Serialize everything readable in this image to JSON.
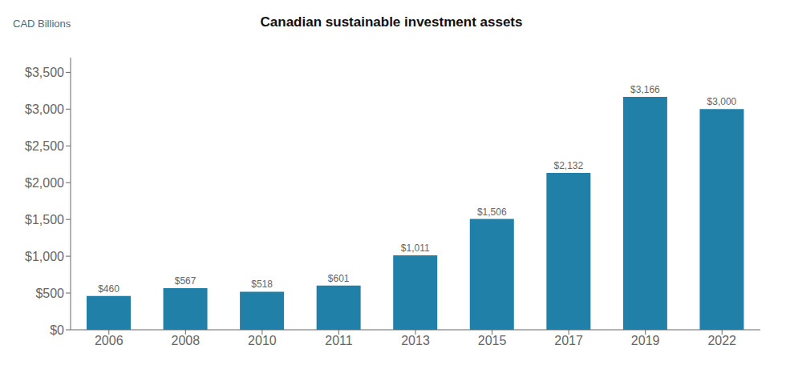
{
  "chart_data": {
    "type": "bar",
    "title": "Canadian sustainable investment assets",
    "ylabel": "CAD Billions",
    "categories": [
      "2006",
      "2008",
      "2010",
      "2011",
      "2013",
      "2015",
      "2017",
      "2019",
      "2022"
    ],
    "values": [
      460,
      567,
      518,
      601,
      1011,
      1506,
      2132,
      3166,
      3000
    ],
    "value_labels": [
      "$460",
      "$567",
      "$518",
      "$601",
      "$1,011",
      "$1,506",
      "$2,132",
      "$3,166",
      "$3,000"
    ],
    "data_labels": true,
    "color": "#2080A8",
    "ylim": [
      0,
      3700
    ],
    "yticks": [
      {
        "value": 0,
        "label": "$0"
      },
      {
        "value": 500,
        "label": "$500"
      },
      {
        "value": 1000,
        "label": "$1,000"
      },
      {
        "value": 1500,
        "label": "$1,500"
      },
      {
        "value": 2000,
        "label": "$2,000"
      },
      {
        "value": 2500,
        "label": "$2,500"
      },
      {
        "value": 3000,
        "label": "$3,000"
      },
      {
        "value": 3500,
        "label": "$3,500"
      }
    ],
    "grid": false
  }
}
